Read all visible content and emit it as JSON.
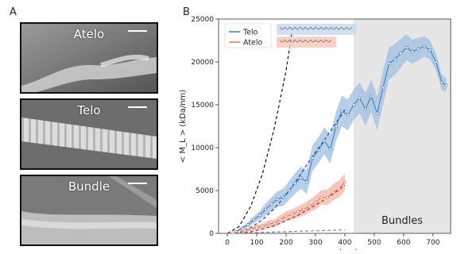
{
  "panel_a": {
    "letter": "A",
    "images": [
      {
        "label": "Atelo"
      },
      {
        "label": "Telo"
      },
      {
        "label": "Bundle"
      }
    ]
  },
  "panel_b": {
    "letter": "B"
  },
  "chart_data": {
    "type": "line",
    "xlabel": "< w > (nm)",
    "ylabel": "< M_L > (kDa/nm)",
    "xlim": [
      -30,
      760
    ],
    "ylim": [
      0,
      25000
    ],
    "xticks": [
      0,
      100,
      200,
      300,
      400,
      500,
      600,
      700
    ],
    "yticks": [
      0,
      5000,
      10000,
      15000,
      20000,
      25000
    ],
    "legend_position": "top-left",
    "region_label": "Bundles",
    "region_start": 430,
    "colors": {
      "Telo": "#3a78b8",
      "Atelo": "#e8735a",
      "Telo_band": "#9fbfe0",
      "Atelo_band": "#f4b3a6",
      "region": "#e6e6e6"
    },
    "series": [
      {
        "name": "Telo",
        "x": [
          30,
          50,
          70,
          90,
          110,
          130,
          150,
          170,
          190,
          210,
          230,
          250,
          270,
          290,
          310,
          330,
          350,
          370,
          390,
          410,
          430,
          450,
          470,
          490,
          510,
          530,
          550,
          570,
          590,
          610,
          630,
          650,
          670,
          690,
          710,
          730,
          745
        ],
        "y": [
          200,
          600,
          1000,
          1600,
          2100,
          2800,
          3400,
          4000,
          4200,
          5000,
          5800,
          6500,
          6000,
          8800,
          9700,
          10800,
          9800,
          12500,
          14300,
          13800,
          15000,
          15800,
          14500,
          16000,
          14000,
          17000,
          19800,
          20300,
          21000,
          21700,
          21200,
          21500,
          21800,
          21400,
          20000,
          17600,
          17300
        ],
        "err": [
          150,
          200,
          300,
          400,
          500,
          700,
          800,
          900,
          1000,
          1100,
          1200,
          1300,
          1400,
          1500,
          1500,
          1600,
          1700,
          1700,
          1800,
          1800,
          1800,
          1800,
          1900,
          1900,
          2000,
          2000,
          1900,
          1800,
          1700,
          1500,
          1400,
          1300,
          1200,
          1100,
          1000,
          900,
          800
        ]
      },
      {
        "name": "Atelo",
        "x": [
          20,
          40,
          60,
          80,
          100,
          120,
          140,
          160,
          180,
          200,
          220,
          240,
          260,
          280,
          300,
          320,
          340,
          360,
          380,
          400
        ],
        "y": [
          50,
          200,
          300,
          500,
          700,
          800,
          1100,
          1200,
          1600,
          2000,
          2200,
          2500,
          2800,
          3200,
          3600,
          4200,
          4200,
          4800,
          5200,
          6000
        ],
        "err": [
          60,
          100,
          150,
          200,
          300,
          350,
          400,
          450,
          500,
          550,
          600,
          650,
          700,
          750,
          800,
          850,
          900,
          950,
          1000,
          1000
        ]
      }
    ],
    "fits": [
      {
        "series": "Telo",
        "style": "dashed-blue",
        "x": [
          40,
          80,
          120,
          160,
          200,
          240,
          280,
          320,
          360,
          400
        ],
        "y": [
          100,
          700,
          1600,
          2900,
          4500,
          6400,
          8500,
          10400,
          12400,
          14400
        ]
      },
      {
        "series": "Atelo",
        "style": "dashed-red",
        "x": [
          40,
          80,
          120,
          160,
          200,
          240,
          280,
          320,
          360,
          400
        ],
        "y": [
          40,
          200,
          500,
          900,
          1500,
          2100,
          2900,
          3700,
          4600,
          5600
        ]
      },
      {
        "series": "",
        "style": "dashed-black",
        "x": [
          0,
          40,
          80,
          120,
          160,
          200,
          220
        ],
        "y": [
          0,
          800,
          3200,
          7000,
          12300,
          19000,
          23500
        ]
      },
      {
        "series": "",
        "style": "dashed-gray",
        "x": [
          0,
          100,
          200,
          300,
          400
        ],
        "y": [
          0,
          100,
          200,
          300,
          400
        ]
      }
    ]
  }
}
